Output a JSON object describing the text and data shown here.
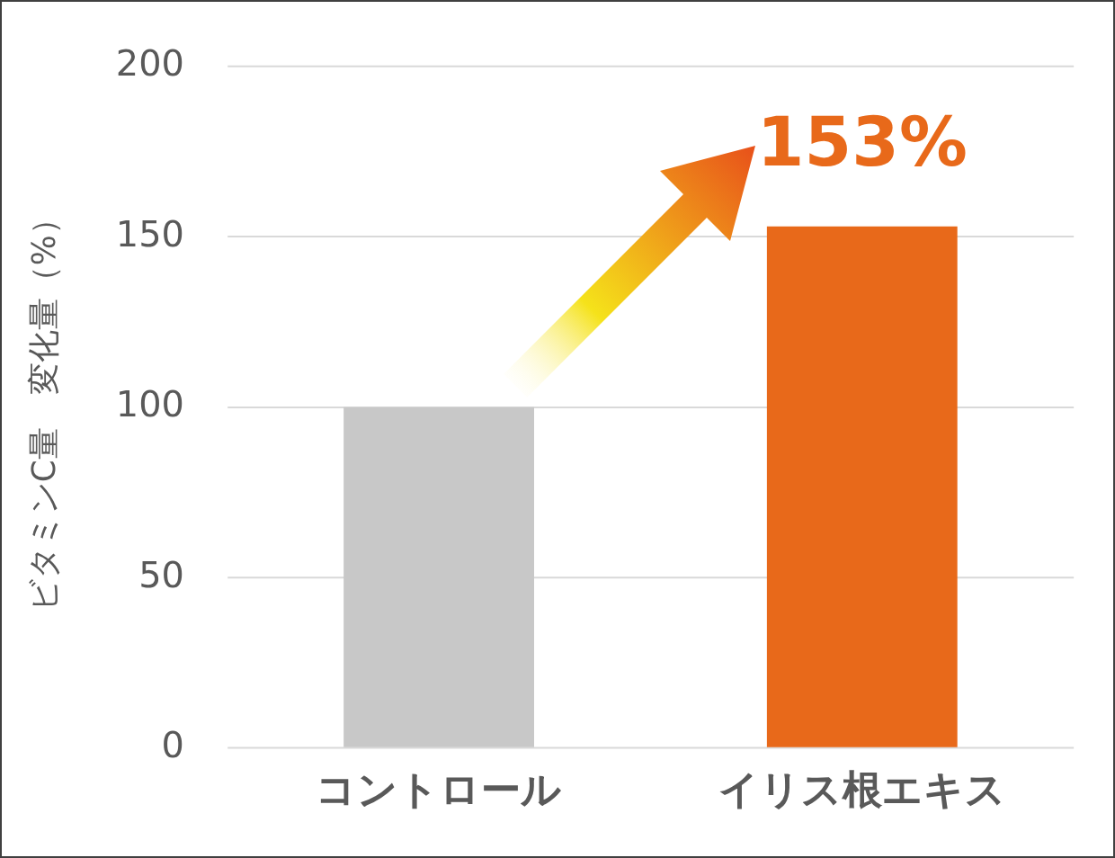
{
  "chart_data": {
    "type": "bar",
    "ylabel": "ビタミンC量　変化量（%）",
    "categories": [
      "コントロール",
      "イリス根エキス"
    ],
    "values": [
      100,
      153
    ],
    "colors": [
      "#c8c8c8",
      "#e8691a"
    ],
    "ylim": [
      0,
      200
    ],
    "yticks": [
      0,
      50,
      100,
      150,
      200
    ],
    "grid": "y",
    "legend": false,
    "annotations": [
      {
        "text": "153%",
        "x": "イリス根エキス",
        "y": 153
      }
    ]
  }
}
